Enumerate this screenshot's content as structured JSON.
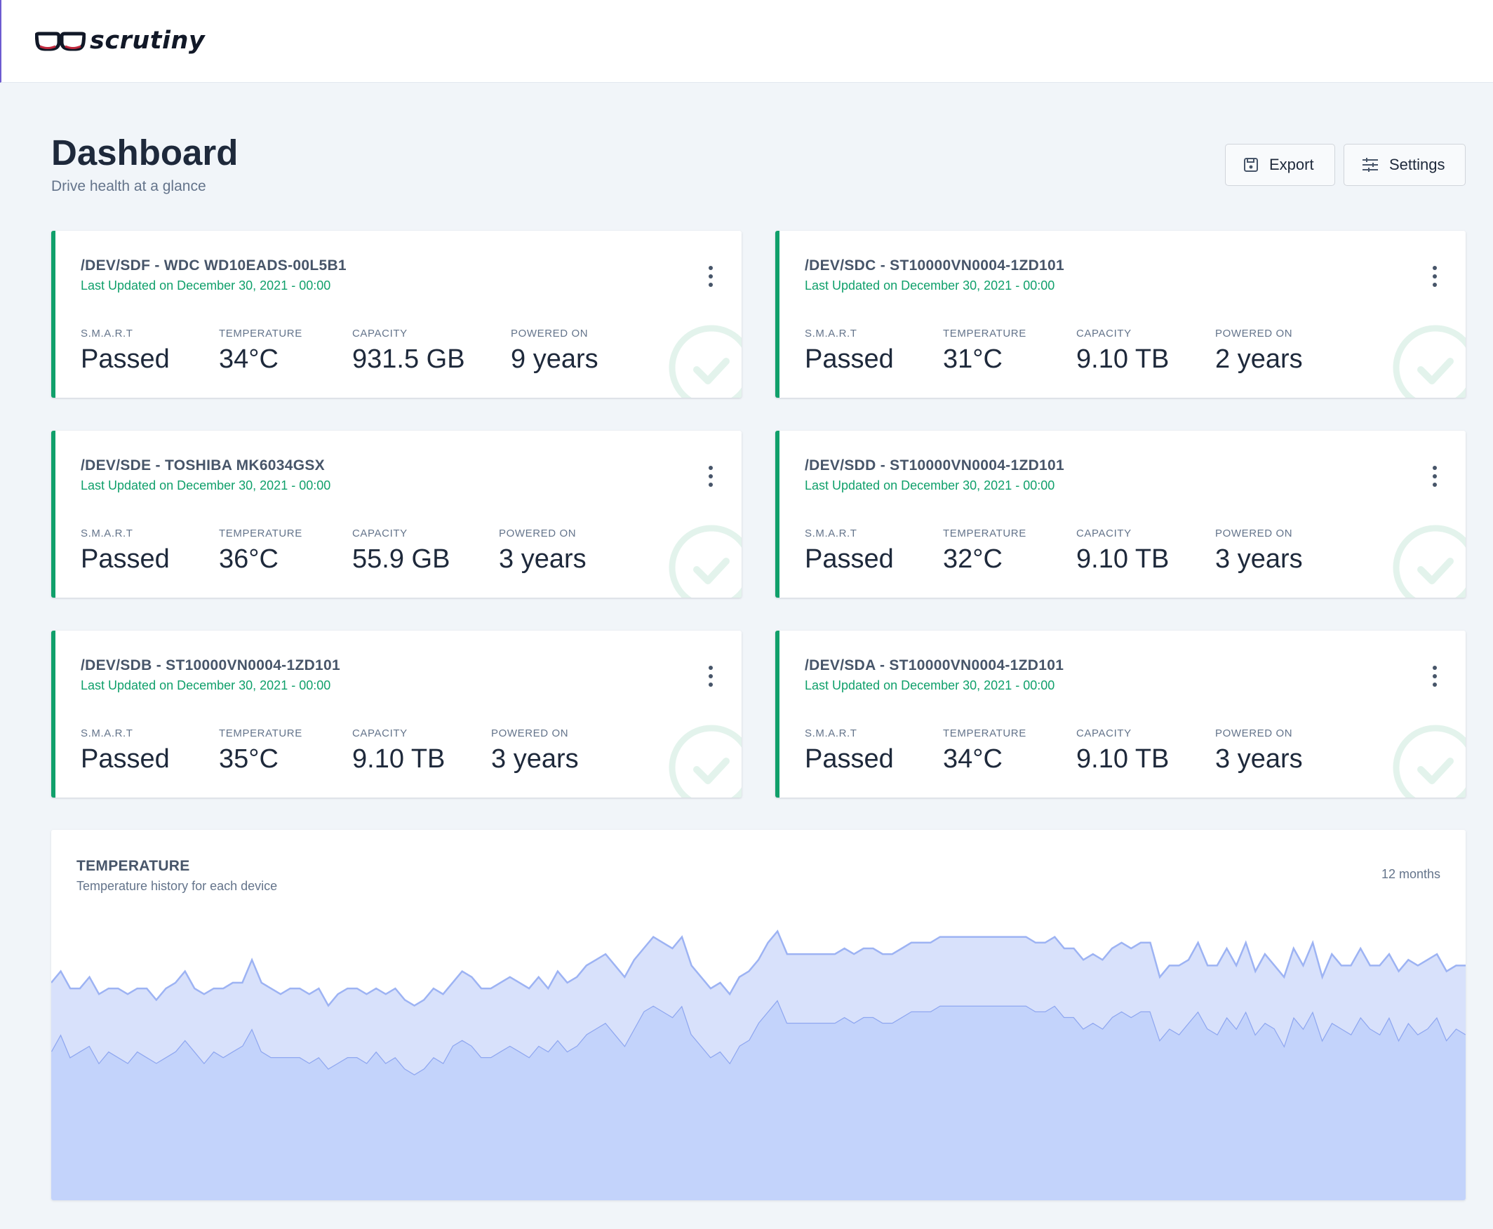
{
  "app": {
    "name": "scrutiny",
    "accent": "#10a06b"
  },
  "header": {
    "title": "Dashboard",
    "subtitle": "Drive health at a glance",
    "export_label": "Export",
    "settings_label": "Settings"
  },
  "stat_labels": {
    "smart": "S.M.A.R.T",
    "temperature": "TEMPERATURE",
    "capacity": "CAPACITY",
    "powered_on": "POWERED ON"
  },
  "devices": [
    {
      "title": "/DEV/SDF - WDC WD10EADS-00L5B1",
      "updated": "Last Updated on December 30, 2021 - 00:00",
      "smart": "Passed",
      "temperature": "34°C",
      "capacity": "931.5 GB",
      "powered_on": "9 years"
    },
    {
      "title": "/DEV/SDC - ST10000VN0004-1ZD101",
      "updated": "Last Updated on December 30, 2021 - 00:00",
      "smart": "Passed",
      "temperature": "31°C",
      "capacity": "9.10 TB",
      "powered_on": "2 years"
    },
    {
      "title": "/DEV/SDE - TOSHIBA MK6034GSX",
      "updated": "Last Updated on December 30, 2021 - 00:00",
      "smart": "Passed",
      "temperature": "36°C",
      "capacity": "55.9 GB",
      "powered_on": "3 years"
    },
    {
      "title": "/DEV/SDD - ST10000VN0004-1ZD101",
      "updated": "Last Updated on December 30, 2021 - 00:00",
      "smart": "Passed",
      "temperature": "32°C",
      "capacity": "9.10 TB",
      "powered_on": "3 years"
    },
    {
      "title": "/DEV/SDB - ST10000VN0004-1ZD101",
      "updated": "Last Updated on December 30, 2021 - 00:00",
      "smart": "Passed",
      "temperature": "35°C",
      "capacity": "9.10 TB",
      "powered_on": "3 years"
    },
    {
      "title": "/DEV/SDA - ST10000VN0004-1ZD101",
      "updated": "Last Updated on December 30, 2021 - 00:00",
      "smart": "Passed",
      "temperature": "34°C",
      "capacity": "9.10 TB",
      "powered_on": "3 years"
    }
  ],
  "temperature": {
    "title": "TEMPERATURE",
    "subtitle": "Temperature history for each device",
    "range": "12 months"
  },
  "chart_data": {
    "type": "area",
    "title": "TEMPERATURE",
    "subtitle": "Temperature history for each device",
    "xlabel": "",
    "ylabel": "",
    "grid": false,
    "stacked": true,
    "colors": [
      "#c3d3fb",
      "#d8e1fb"
    ],
    "series": [
      {
        "values": [
          26,
          29,
          25,
          26,
          27,
          24,
          26,
          25,
          24,
          26,
          25,
          24,
          25,
          26,
          28,
          26,
          24,
          26,
          25,
          26,
          27,
          30,
          26,
          25,
          25,
          25,
          25,
          24,
          25,
          23,
          24,
          25,
          25,
          24,
          26,
          24,
          25,
          23,
          22,
          23,
          25,
          24,
          27,
          28,
          27,
          25,
          25,
          26,
          27,
          26,
          25,
          27,
          26,
          28,
          26,
          27,
          29,
          30,
          31,
          29,
          27,
          30,
          33,
          34,
          33,
          32,
          34,
          29,
          27,
          25,
          26,
          24,
          27,
          28,
          31,
          33,
          35,
          31,
          31,
          31,
          31,
          31,
          31,
          32,
          31,
          32,
          32,
          31,
          31,
          32,
          33,
          33,
          33,
          34,
          34,
          34,
          34,
          34,
          34,
          34,
          34,
          34,
          34,
          33,
          33,
          34,
          32,
          32,
          30,
          31,
          30,
          32,
          33,
          32,
          33,
          33,
          28,
          30,
          29,
          31,
          33,
          30,
          29,
          32,
          30,
          33,
          29,
          31,
          30,
          27,
          32,
          30,
          33,
          28,
          31,
          30,
          29,
          32,
          30,
          29,
          32,
          28,
          31,
          29,
          30,
          32,
          28,
          30,
          29
        ]
      },
      {
        "values": [
          12,
          11,
          12,
          11,
          12,
          12,
          11,
          12,
          12,
          11,
          12,
          11,
          12,
          12,
          12,
          11,
          12,
          11,
          12,
          12,
          11,
          12,
          12,
          12,
          11,
          12,
          12,
          12,
          12,
          11,
          12,
          12,
          12,
          12,
          11,
          12,
          12,
          12,
          12,
          12,
          12,
          12,
          11,
          12,
          12,
          12,
          12,
          12,
          12,
          12,
          12,
          12,
          11,
          12,
          12,
          12,
          12,
          12,
          12,
          12,
          12,
          12,
          11,
          12,
          12,
          12,
          12,
          12,
          12,
          12,
          12,
          12,
          12,
          12,
          11,
          12,
          12,
          12,
          12,
          12,
          12,
          12,
          12,
          12,
          12,
          12,
          12,
          12,
          12,
          12,
          12,
          12,
          12,
          12,
          12,
          12,
          12,
          12,
          12,
          12,
          12,
          12,
          12,
          12,
          12,
          12,
          12,
          12,
          12,
          12,
          12,
          12,
          12,
          12,
          12,
          12,
          11,
          11,
          12,
          11,
          12,
          11,
          12,
          12,
          11,
          12,
          11,
          12,
          11,
          12,
          12,
          11,
          12,
          11,
          12,
          11,
          12,
          12,
          11,
          12,
          11,
          12,
          11,
          12,
          12,
          11,
          12,
          11,
          12
        ]
      }
    ]
  }
}
